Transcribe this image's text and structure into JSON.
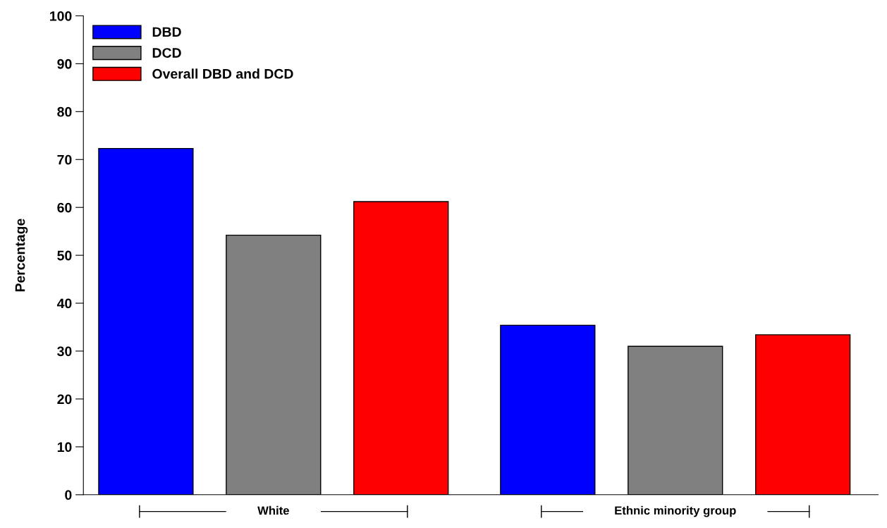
{
  "chart_data": {
    "type": "bar",
    "ylabel": "Percentage",
    "categories": [
      "White",
      "Ethnic minority group"
    ],
    "series": [
      {
        "name": "DBD",
        "color": "#0000ff",
        "values": [
          72.3,
          35.4
        ]
      },
      {
        "name": "DCD",
        "color": "#808080",
        "values": [
          54.2,
          31.0
        ]
      },
      {
        "name": "Overall DBD and DCD",
        "color": "#ff0000",
        "values": [
          61.2,
          33.4
        ]
      }
    ],
    "ylim": [
      0,
      100
    ],
    "yticks": [
      0,
      10,
      20,
      30,
      40,
      50,
      60,
      70,
      80,
      90,
      100
    ],
    "grid": false,
    "legend": "top left"
  }
}
